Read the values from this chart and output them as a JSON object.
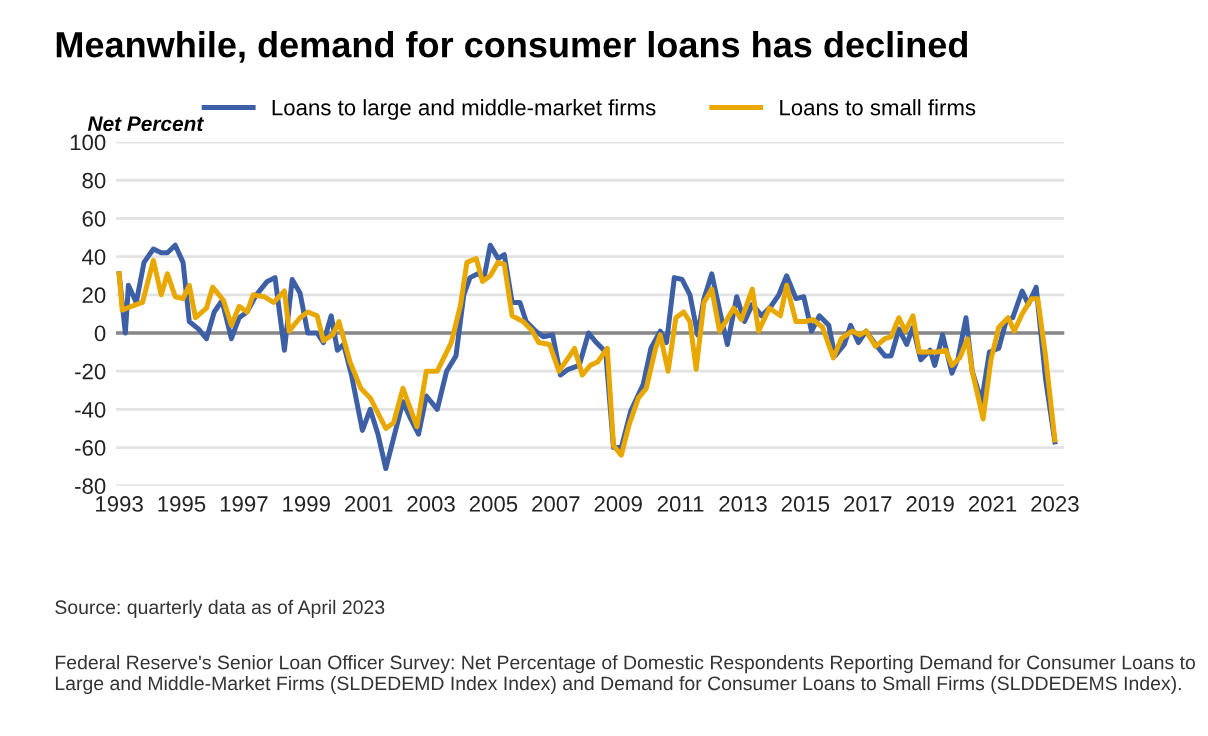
{
  "chart_data": {
    "type": "line",
    "title": "Meanwhile, demand for consumer loans has declined",
    "ylabel": "Net Percent",
    "series": [
      {
        "name": "Loans to large and middle-market firms",
        "color": "#3d5fa6",
        "x": [
          1993.0,
          1993.2,
          1993.3,
          1993.55,
          1993.8,
          1994.1,
          1994.35,
          1994.55,
          1994.8,
          1995.05,
          1995.25,
          1995.55,
          1995.8,
          1996.05,
          1996.3,
          1996.6,
          1996.85,
          1997.1,
          1997.4,
          1997.75,
          1998.0,
          1998.3,
          1998.55,
          1998.8,
          1999.05,
          1999.35,
          1999.55,
          1999.8,
          2000.0,
          2000.2,
          2000.45,
          2000.8,
          2001.05,
          2001.3,
          2001.55,
          2001.8,
          2002.1,
          2002.35,
          2002.6,
          2002.85,
          2003.2,
          2003.5,
          2003.8,
          2004.05,
          2004.25,
          2004.5,
          2004.7,
          2004.9,
          2005.15,
          2005.35,
          2005.6,
          2005.85,
          2006.05,
          2006.35,
          2006.6,
          2006.9,
          2007.15,
          2007.4,
          2007.75,
          2008.05,
          2008.3,
          2008.6,
          2008.85,
          2009.1,
          2009.4,
          2009.8,
          2010.05,
          2010.35,
          2010.55,
          2010.8,
          2011.05,
          2011.3,
          2011.55,
          2011.75,
          2012.0,
          2012.25,
          2012.5,
          2012.8,
          2013.05,
          2013.3,
          2013.6,
          2013.9,
          2014.15,
          2014.4,
          2014.7,
          2014.95,
          2015.2,
          2015.45,
          2015.75,
          2015.95,
          2016.25,
          2016.45,
          2016.7,
          2016.95,
          2017.25,
          2017.55,
          2017.75,
          2018.0,
          2018.25,
          2018.45,
          2018.7,
          2019.0,
          2019.15,
          2019.4,
          2019.7,
          2019.9,
          2020.15,
          2020.35,
          2020.65,
          2020.9,
          2021.2,
          2021.45,
          2021.65,
          2021.95,
          2022.15,
          2022.4,
          2022.7,
          2023.0
        ],
        "values": [
          31,
          0,
          25,
          16,
          37,
          44,
          42,
          42,
          46,
          37,
          6,
          2,
          -3,
          11,
          17,
          -3,
          8,
          11,
          20,
          27,
          29,
          -9,
          28,
          21,
          0,
          0,
          -5,
          9,
          -9,
          -6,
          -22,
          -51,
          -40,
          -53,
          -71,
          -55,
          -36,
          -45,
          -53,
          -33,
          -40,
          -20,
          -12,
          20,
          29,
          31,
          29,
          46,
          39,
          41,
          16,
          16,
          6,
          1,
          -2,
          -1,
          -22,
          -19,
          -17,
          0,
          -5,
          -10,
          -60,
          -60,
          -41,
          -27,
          -8,
          1,
          -5,
          29,
          28,
          20,
          -1,
          18,
          31,
          12,
          -6,
          19,
          6,
          15,
          9,
          14,
          20,
          30,
          18,
          19,
          1,
          9,
          4,
          -12,
          -6,
          4,
          -5,
          1,
          -6,
          -12,
          -12,
          2,
          -6,
          3,
          -14,
          -9,
          -17,
          -1,
          -21,
          -13,
          8,
          -20,
          -36,
          -10,
          -8,
          7,
          8,
          22,
          15,
          24,
          -24,
          -57
        ]
      },
      {
        "name": "Loans to small firms",
        "color": "#e8a800",
        "x": [
          1993.0,
          1993.1,
          1993.4,
          1993.75,
          1994.1,
          1994.35,
          1994.55,
          1994.8,
          1995.05,
          1995.25,
          1995.45,
          1995.8,
          1996.0,
          1996.35,
          1996.6,
          1996.85,
          1997.1,
          1997.3,
          1997.65,
          1997.95,
          1998.3,
          1998.45,
          1998.8,
          1999.05,
          1999.35,
          1999.55,
          1999.85,
          2000.05,
          2000.4,
          2000.75,
          2001.05,
          2001.55,
          2001.8,
          2002.1,
          2002.3,
          2002.55,
          2002.85,
          2003.2,
          2003.65,
          2003.95,
          2004.15,
          2004.45,
          2004.65,
          2004.9,
          2005.15,
          2005.35,
          2005.6,
          2005.95,
          2006.25,
          2006.45,
          2006.8,
          2007.1,
          2007.4,
          2007.6,
          2007.85,
          2008.1,
          2008.35,
          2008.65,
          2008.85,
          2009.1,
          2009.35,
          2009.65,
          2009.9,
          2010.2,
          2010.35,
          2010.6,
          2010.85,
          2011.1,
          2011.3,
          2011.5,
          2011.75,
          2012.0,
          2012.25,
          2012.45,
          2012.7,
          2012.95,
          2013.3,
          2013.5,
          2013.85,
          2014.2,
          2014.4,
          2014.7,
          2015.0,
          2015.25,
          2015.55,
          2015.9,
          2016.15,
          2016.5,
          2016.75,
          2016.95,
          2017.25,
          2017.55,
          2017.75,
          2018.0,
          2018.2,
          2018.45,
          2018.65,
          2019.0,
          2019.2,
          2019.5,
          2019.7,
          2019.95,
          2020.2,
          2020.35,
          2020.7,
          2020.95,
          2021.2,
          2021.5,
          2021.7,
          2021.95,
          2022.25,
          2022.45,
          2022.7,
          2023.0
        ],
        "values": [
          31,
          12,
          14,
          16,
          38,
          20,
          31,
          19,
          18,
          25,
          8,
          13,
          24,
          17,
          4,
          14,
          11,
          20,
          19,
          16,
          22,
          1,
          8,
          11,
          9,
          -4,
          -1,
          6,
          -15,
          -29,
          -34,
          -50,
          -47,
          -29,
          -38,
          -49,
          -20,
          -20,
          -5,
          15,
          37,
          39,
          27,
          30,
          37,
          36,
          9,
          6,
          1,
          -5,
          -6,
          -20,
          -13,
          -8,
          -22,
          -17,
          -15,
          -8,
          -59,
          -64,
          -48,
          -34,
          -29,
          -8,
          -1,
          -20,
          8,
          11,
          6,
          -19,
          16,
          23,
          1,
          6,
          13,
          7,
          23,
          1,
          13,
          9,
          25,
          6,
          6,
          7,
          3,
          -13,
          -3,
          1,
          -1,
          1,
          -7,
          -3,
          -2,
          8,
          1,
          9,
          -10,
          -10,
          -10,
          -9,
          -17,
          -13,
          -3,
          -20,
          -45,
          -14,
          3,
          8,
          1,
          10,
          18,
          18,
          -12,
          -56
        ]
      }
    ],
    "xlim": [
      1992.9,
      2023.3
    ],
    "xticks": [
      1993,
      1995,
      1997,
      1999,
      2001,
      2003,
      2005,
      2007,
      2009,
      2011,
      2013,
      2015,
      2017,
      2019,
      2021,
      2023
    ],
    "ylim": [
      -80,
      100
    ],
    "yticks": [
      -80,
      -60,
      -40,
      -20,
      0,
      20,
      40,
      60,
      80,
      100
    ],
    "ref_lines": [
      {
        "axis": "y",
        "value": 0,
        "color": "#888888"
      }
    ],
    "grid": "y",
    "legend": "top",
    "line_style": "solid",
    "marker": "none",
    "annotations": [
      "Source: quarterly data as of April 2023",
      "Federal Reserve's Senior Loan Officer Survey: Net Percentage of Domestic Respondents Reporting Demand for Consumer Loans to Large and Middle-Market Firms (SLDEDEMD Index Index) and Demand for Consumer Loans to Small Firms (SLDDEDEMS Index)."
    ]
  }
}
